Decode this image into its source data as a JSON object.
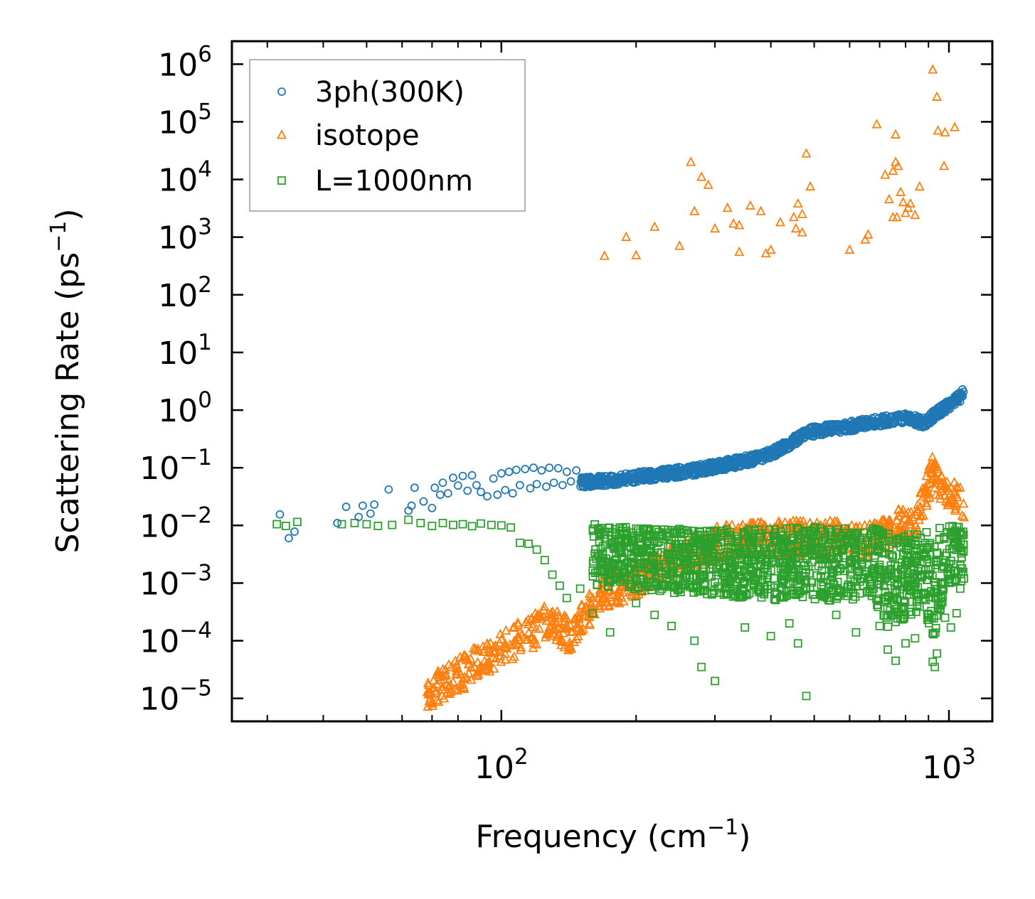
{
  "chart_data": {
    "type": "scatter",
    "xlabel": "Frequency (cm",
    "xlabel_sup": "−1",
    "xlabel_end": ")",
    "ylabel": "Scattering Rate (ps",
    "ylabel_sup": "−1",
    "ylabel_end": ")",
    "x_scale": "log",
    "y_scale": "log",
    "xlim": [
      25,
      1250
    ],
    "ylim": [
      4e-06,
      2500000.0
    ],
    "x_ticks": [
      {
        "value": 100,
        "base": "10",
        "exp": "2"
      },
      {
        "value": 1000,
        "base": "10",
        "exp": "3"
      }
    ],
    "y_ticks": [
      {
        "value": 1e-05,
        "base": "10",
        "exp": "−5"
      },
      {
        "value": 0.0001,
        "base": "10",
        "exp": "−4"
      },
      {
        "value": 0.001,
        "base": "10",
        "exp": "−3"
      },
      {
        "value": 0.01,
        "base": "10",
        "exp": "−2"
      },
      {
        "value": 0.1,
        "base": "10",
        "exp": "−1"
      },
      {
        "value": 1,
        "base": "10",
        "exp": "0"
      },
      {
        "value": 10,
        "base": "10",
        "exp": "1"
      },
      {
        "value": 100,
        "base": "10",
        "exp": "2"
      },
      {
        "value": 1000,
        "base": "10",
        "exp": "3"
      },
      {
        "value": 10000,
        "base": "10",
        "exp": "4"
      },
      {
        "value": 100000,
        "base": "10",
        "exp": "5"
      },
      {
        "value": 1000000,
        "base": "10",
        "exp": "6"
      }
    ],
    "legend_position": "top-left",
    "series": [
      {
        "name": "3ph(300K)",
        "marker": "circle",
        "color": "#1f77b4",
        "points": [
          [
            32,
            0.0155
          ],
          [
            33.5,
            0.006
          ],
          [
            34.5,
            0.0078
          ],
          [
            43,
            0.011
          ],
          [
            45,
            0.021
          ],
          [
            48,
            0.014
          ],
          [
            49,
            0.022
          ],
          [
            51,
            0.016
          ],
          [
            52,
            0.023
          ],
          [
            56,
            0.042
          ],
          [
            62,
            0.018
          ],
          [
            63,
            0.022
          ],
          [
            64,
            0.045
          ],
          [
            67,
            0.026
          ],
          [
            70,
            0.02
          ],
          [
            71,
            0.045
          ],
          [
            73,
            0.034
          ],
          [
            74,
            0.055
          ],
          [
            76,
            0.036
          ],
          [
            78,
            0.067
          ],
          [
            80,
            0.049
          ],
          [
            82,
            0.072
          ],
          [
            84,
            0.04
          ],
          [
            86,
            0.074
          ],
          [
            88,
            0.05
          ],
          [
            90,
            0.038
          ],
          [
            93,
            0.032
          ],
          [
            96,
            0.065
          ],
          [
            98,
            0.034
          ],
          [
            100,
            0.08
          ],
          [
            102,
            0.041
          ],
          [
            104,
            0.085
          ],
          [
            106,
            0.036
          ],
          [
            108,
            0.092
          ],
          [
            110,
            0.05
          ],
          [
            113,
            0.095
          ],
          [
            116,
            0.044
          ],
          [
            118,
            0.1
          ],
          [
            120,
            0.052
          ],
          [
            123,
            0.09
          ],
          [
            126,
            0.047
          ],
          [
            128,
            0.1
          ],
          [
            131,
            0.055
          ],
          [
            134,
            0.098
          ],
          [
            137,
            0.05
          ],
          [
            140,
            0.085
          ],
          [
            143,
            0.058
          ],
          [
            147,
            0.09
          ]
        ],
        "trend": [
          [
            150,
            0.055
          ],
          [
            180,
            0.062
          ],
          [
            220,
            0.075
          ],
          [
            270,
            0.09
          ],
          [
            330,
            0.12
          ],
          [
            380,
            0.15
          ],
          [
            430,
            0.23
          ],
          [
            480,
            0.4
          ],
          [
            520,
            0.45
          ],
          [
            580,
            0.5
          ],
          [
            650,
            0.58
          ],
          [
            720,
            0.65
          ],
          [
            800,
            0.75
          ],
          [
            880,
            0.6
          ],
          [
            940,
            0.9
          ],
          [
            1000,
            1.2
          ],
          [
            1050,
            1.6
          ],
          [
            1080,
            2.0
          ]
        ]
      },
      {
        "name": "isotope",
        "marker": "triangle",
        "color": "#ff7f0e",
        "points": [
          [
            920,
            800000
          ],
          [
            940,
            270000
          ],
          [
            945,
            70000
          ],
          [
            980,
            65000
          ],
          [
            1030,
            80000
          ],
          [
            975,
            17000
          ],
          [
            760,
            60000
          ],
          [
            690,
            90000
          ],
          [
            720,
            12000
          ],
          [
            735,
            4500
          ],
          [
            760,
            20000
          ],
          [
            770,
            17000
          ],
          [
            780,
            6000
          ],
          [
            790,
            4000
          ],
          [
            800,
            2600
          ],
          [
            810,
            3200
          ],
          [
            820,
            3800
          ],
          [
            840,
            2400
          ],
          [
            860,
            7500
          ],
          [
            750,
            14000
          ],
          [
            765,
            2200
          ],
          [
            480,
            28000
          ],
          [
            490,
            7500
          ],
          [
            470,
            2500
          ],
          [
            460,
            3800
          ],
          [
            450,
            2200
          ],
          [
            420,
            1800
          ],
          [
            400,
            600
          ],
          [
            390,
            520
          ],
          [
            380,
            2800
          ],
          [
            360,
            3500
          ],
          [
            340,
            1600
          ],
          [
            330,
            1700
          ],
          [
            320,
            3200
          ],
          [
            300,
            1400
          ],
          [
            290,
            8000
          ],
          [
            280,
            11000
          ],
          [
            270,
            2800
          ],
          [
            265,
            20000
          ],
          [
            250,
            700
          ],
          [
            220,
            1500
          ],
          [
            200,
            480
          ],
          [
            190,
            1000
          ],
          [
            170,
            470
          ],
          [
            340,
            550
          ],
          [
            650,
            900
          ],
          [
            750,
            2200
          ],
          [
            660,
            1100
          ],
          [
            600,
            600
          ],
          [
            470,
            1200
          ],
          [
            455,
            1400
          ]
        ],
        "band": [
          [
            68,
            1.2e-05
          ],
          [
            75,
            1.8e-05
          ],
          [
            82,
            2.8e-05
          ],
          [
            90,
            4.5e-05
          ],
          [
            100,
            7e-05
          ],
          [
            110,
            0.00011
          ],
          [
            120,
            0.00016
          ],
          [
            128,
            0.00025
          ],
          [
            135,
            0.00016
          ],
          [
            142,
            0.00012
          ],
          [
            150,
            0.00022
          ],
          [
            160,
            0.0004
          ],
          [
            170,
            0.0007
          ],
          [
            185,
            0.0009
          ],
          [
            200,
            0.0012
          ],
          [
            250,
            0.003
          ],
          [
            320,
            0.0055
          ],
          [
            400,
            0.006
          ],
          [
            480,
            0.006
          ],
          [
            560,
            0.006
          ],
          [
            640,
            0.005
          ],
          [
            700,
            0.006
          ],
          [
            760,
            0.01
          ],
          [
            830,
            0.009
          ],
          [
            880,
            0.03
          ],
          [
            920,
            0.08
          ],
          [
            950,
            0.05
          ],
          [
            1000,
            0.035
          ],
          [
            1060,
            0.025
          ],
          [
            1080,
            0.015
          ]
        ]
      },
      {
        "name": "L=1000nm",
        "marker": "square",
        "color": "#2ca02c",
        "points": [
          [
            31.5,
            0.0105
          ],
          [
            33,
            0.0098
          ],
          [
            35,
            0.0115
          ],
          [
            44,
            0.0105
          ],
          [
            47,
            0.011
          ],
          [
            50,
            0.0105
          ],
          [
            53,
            0.0098
          ],
          [
            57,
            0.0102
          ],
          [
            62,
            0.0125
          ],
          [
            66,
            0.011
          ],
          [
            70,
            0.0098
          ],
          [
            74,
            0.011
          ],
          [
            78,
            0.0102
          ],
          [
            82,
            0.0105
          ],
          [
            86,
            0.0097
          ],
          [
            90,
            0.0108
          ],
          [
            95,
            0.0102
          ],
          [
            100,
            0.01
          ],
          [
            105,
            0.0092
          ],
          [
            110,
            0.005
          ],
          [
            115,
            0.0048
          ],
          [
            120,
            0.0038
          ],
          [
            125,
            0.0025
          ],
          [
            130,
            0.0014
          ],
          [
            135,
            0.0009
          ],
          [
            140,
            0.00055
          ],
          [
            150,
            0.0008
          ],
          [
            160,
            0.0003
          ],
          [
            175,
            0.00014
          ],
          [
            200,
            0.00045
          ],
          [
            220,
            0.00028
          ],
          [
            240,
            0.00018
          ],
          [
            270,
            0.0001
          ],
          [
            280,
            3.5e-05
          ],
          [
            300,
            2e-05
          ],
          [
            350,
            0.00017
          ],
          [
            400,
            0.00012
          ],
          [
            440,
            0.0002
          ],
          [
            460,
            9e-05
          ],
          [
            480,
            1.1e-05
          ],
          [
            560,
            0.00028
          ],
          [
            620,
            0.00014
          ],
          [
            700,
            0.00018
          ],
          [
            730,
            7e-05
          ],
          [
            760,
            4.5e-05
          ],
          [
            800,
            9e-05
          ],
          [
            840,
            0.00011
          ],
          [
            920,
            4.3e-05
          ],
          [
            930,
            3.5e-05
          ],
          [
            940,
            6e-05
          ],
          [
            980,
            0.00025
          ],
          [
            1010,
            0.00017
          ],
          [
            1040,
            0.0003
          ],
          [
            1060,
            0.0008
          ],
          [
            1080,
            0.0012
          ]
        ],
        "band_low": [
          [
            160,
            0.0009
          ],
          [
            200,
            0.00075
          ],
          [
            300,
            0.0006
          ],
          [
            400,
            0.0005
          ],
          [
            500,
            0.0005
          ],
          [
            600,
            0.0005
          ],
          [
            680,
            0.0006
          ],
          [
            720,
            0.00015
          ],
          [
            760,
            0.0002
          ],
          [
            820,
            0.00025
          ],
          [
            880,
            0.0004
          ],
          [
            920,
            8e-05
          ],
          [
            950,
            0.0003
          ],
          [
            1000,
            0.0008
          ],
          [
            1080,
            0.001
          ]
        ],
        "band_high": [
          [
            160,
            0.011
          ],
          [
            200,
            0.009
          ],
          [
            300,
            0.0085
          ],
          [
            400,
            0.009
          ],
          [
            500,
            0.0095
          ],
          [
            600,
            0.009
          ],
          [
            680,
            0.009
          ],
          [
            720,
            0.008
          ],
          [
            760,
            0.006
          ],
          [
            820,
            0.0075
          ],
          [
            880,
            0.0085
          ],
          [
            920,
            0.006
          ],
          [
            950,
            0.009
          ],
          [
            1000,
            0.011
          ],
          [
            1080,
            0.009
          ]
        ]
      }
    ]
  }
}
